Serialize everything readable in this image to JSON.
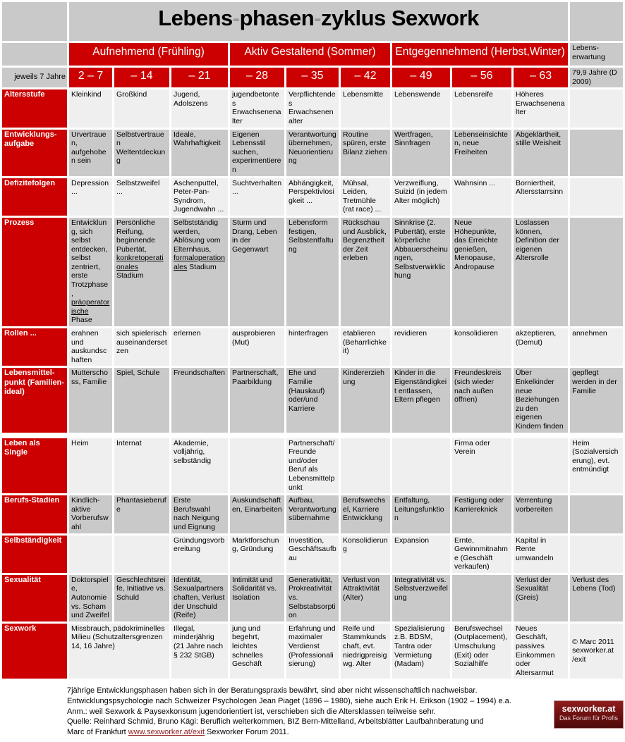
{
  "colors": {
    "accent_red": "#cc0000",
    "header_grey": "#c9c9c9",
    "row_light": "#efefef",
    "row_dark": "#c9c9c9",
    "link_red": "#8b1a1a"
  },
  "title": {
    "part1": "Lebens",
    "part2": "phasen",
    "part3": "zyklus Sexwork",
    "dash": "-"
  },
  "header": {
    "seasons": [
      "Aufnehmend (Frühling)",
      "Aktiv Gestaltend (Sommer)",
      "Entgegennehmend (Herbst,Winter)"
    ],
    "age_label": "jeweils 7 Jahre",
    "ages": [
      "2 – 7",
      "– 14",
      "– 21",
      "– 28",
      "– 35",
      "– 42",
      "– 49",
      "– 56",
      "– 63"
    ],
    "life_expectancy_label": "Lebens-erwartung",
    "life_expectancy_value": "79,9 Jahre (D 2009)"
  },
  "rows": [
    {
      "label": "Altersstufe",
      "cells": [
        "Kleinkind",
        "Großkind",
        "Jugend, Adolszens",
        "jugendbetontes Erwachsenenalter",
        "Verpflichtendes Erwachsenenalter",
        "Lebensmitte",
        "Lebenswende",
        "Lebensreife",
        "Höheres Erwachsenenalter",
        ""
      ]
    },
    {
      "label": "Entwicklungs-aufgabe",
      "cells": [
        "Urvertrauen, aufgehoben sein",
        "Selbstvertrauen Weltentdeckung",
        "Ideale, Wahrhaftigkeit",
        "Eigenen Lebensstil suchen, experimentieren",
        "Verantwortung übernehmen, Neuorientierung",
        "Routine spüren, erste Bilanz ziehen",
        "Wertfragen, Sinnfragen",
        "Lebenseinsichten, neue Freiheiten",
        "Abgeklärtheit, stille Weisheit",
        ""
      ]
    },
    {
      "label": "Defizitefolgen",
      "cells": [
        "Depression ...",
        "Selbstzweifel ...",
        "Aschenputtel, Peter-Pan-Syndrom, Jugendwahn ...",
        "Suchtverhalten ...",
        "Abhängigkeit, Perspektivlosigkeit ...",
        "Mühsal, Leiden, Tretmühle (rat race) ...",
        "Verzweiflung, Suizid (in jedem Alter möglich)",
        "Wahnsinn ...",
        "Borniertheit, Altersstarrsinn",
        ""
      ]
    },
    {
      "label": "Prozess",
      "cells": [
        {
          "parts": [
            [
              "Entwicklung, sich selbst entdecken, selbst zentriert, erste Trotzphase, ",
              0
            ],
            [
              "präoperatorische",
              1
            ],
            [
              " Phase",
              0
            ]
          ]
        },
        {
          "parts": [
            [
              "Persönliche Reifung, beginnende Pubertät, ",
              0
            ],
            [
              "konkretoperationales",
              1
            ],
            [
              " Stadium",
              0
            ]
          ]
        },
        {
          "parts": [
            [
              "Selbstständig werden, Ablösung vom Elternhaus, ",
              0
            ],
            [
              "formaloperationales",
              1
            ],
            [
              " Stadium",
              0
            ]
          ]
        },
        "Sturm und Drang, Leben in der Gegenwart",
        "Lebensform festigen, Selbstentfaltung",
        "Rückschau und Ausblick, Begrenztheit der Zeit erleben",
        "Sinnkrise (2. Pubertät), erste körperliche Abbauerscheinungen, Selbstverwirklichung",
        "Neue Höhepunkte, das Erreichte genießen, Menopause, Andropause",
        "Loslassen können, Definition der eigenen Altersrolle",
        ""
      ]
    },
    {
      "label": "Rollen ...",
      "cells": [
        "erahnen und auskundschaften",
        "sich spielerisch auseinandersetzen",
        "erlernen",
        "ausprobieren (Mut)",
        "hinterfragen",
        "etablieren (Beharrlichkeit)",
        "revidieren",
        "konsolidieren",
        "akzeptieren, (Demut)",
        "annehmen"
      ]
    },
    {
      "label": "Lebensmittel-punkt (Familien-ideal)",
      "cells": [
        "Mutterschoss, Familie",
        "Spiel, Schule",
        "Freundschaften",
        "Partnerschaft, Paarbildung",
        "Ehe und Familie (Hauskauf) oder/und Karriere",
        "Kindererziehung",
        "Kinder in die Eigenständigkeit entlassen, Eltern pflegen",
        "Freundeskreis (sich wieder nach außen öffnen)",
        "Über Enkelkinder neue Beziehungen zu den eigenen Kindern finden",
        "gepflegt werden in der Familie"
      ]
    },
    {
      "label": "Leben als Single",
      "cells": [
        "Heim",
        "Internat",
        "Akademie, volljährig, selbständig",
        "",
        "Partnerschaft/Freunde und/oder Beruf als Lebensmittelpunkt",
        "",
        "",
        "Firma oder Verein",
        "",
        "Heim (Sozialversicherung), evt. entmündigt"
      ]
    },
    {
      "label": "Berufs-Stadien",
      "cells": [
        "Kindlich-aktive Vorberufswahl",
        "Phantasieberufe",
        "Erste Berufswahl nach Neigung und Eignung",
        "Auskundschaften, Einarbeiten",
        "Aufbau, Verantwortungsübernahme",
        "Berufswechsel, Karriere Entwicklung",
        "Entfaltung, Leitungsfunktion",
        "Festigung oder Karriereknick",
        "Verrentung vorbereiten",
        ""
      ]
    },
    {
      "label": "Selbständigkeit",
      "cells": [
        "",
        "",
        "Gründungsvorbereitung",
        "Marktforschung, Gründung",
        "Investition, Geschäftsaufbau",
        "Konsolidierung",
        "Expansion",
        "Ernte, Gewinnmitnahme (Geschäft verkaufen)",
        "Kapital in Rente umwandeln",
        ""
      ]
    },
    {
      "label": "Sexualität",
      "cells": [
        "Doktorspiele, Autonomie vs. Scham und Zweifel",
        "Geschlechtsreife, Initiative vs. Schuld",
        "Identität, Sexualpartnerschaften, Verlust der Unschuld (Reife)",
        "Intimität und Solidarität vs. Isolation",
        "Generativität, Prokreativität vs. Selbstabsorption",
        "Verlust von Attraktivität (Alter)",
        "Integrativität vs. Selbstverzweifelung",
        "",
        "Verlust der Sexualität (Greis)",
        "Verlust des Lebens (Tod)"
      ]
    },
    {
      "label": "Sexwork",
      "cells": [
        {
          "text": "Missbrauch, pädokriminelles Milieu (Schutzaltersgrenzen 14, 16 Jahre)",
          "colspan": 2
        },
        "Illegal, minderjährig (21 Jahre nach § 232 StGB)",
        "jung und begehrt, leichtes schnelles Geschäft",
        "Erfahrung und maximaler Verdienst (Professionalisierung)",
        "Reife und Stammkundschaft, evt. niedrigpreisig wg. Alter",
        "Spezialisierung z.B. BDSM, Tantra oder Vermietung (Madam)",
        "Berufswechsel (Outplacement), Umschulung (Exit) oder Sozialhilfe",
        "Neues Geschäft, passives Einkommen oder Altersarmut",
        {
          "text": "© Marc 2011 sexworker.at /exit",
          "middle": true
        }
      ]
    }
  ],
  "footer": {
    "lines": [
      "7jährige Entwicklungsphasen haben sich in der Beratungspraxis bewährt, sind aber nicht wissenschaftlich nachweisbar.",
      "Entwicklungspsychologie nach Schweizer Psychologen Jean Piaget (1896 – 1980), siehe auch Erik H. Erikson (1902 – 1994) e.a.",
      "Anm.: weil Sexwork & Paysexkonsum jugendorientiert ist, verschieben sich die Altersklassen teilweise sehr.",
      "Quelle: Reinhard Schmid, Bruno Kägi: Beruflich weiterkommen, BIZ Bern-Mittelland, Arbeitsblätter Laufbahnberatung und"
    ],
    "line5_before": "Marc of Frankfurt ",
    "link": "www.sexworker.at/exit",
    "line5_after": " Sexworker Forum 2011."
  },
  "logo": {
    "line1": "sexworker.at",
    "line2": "Das Forum für Profis"
  }
}
